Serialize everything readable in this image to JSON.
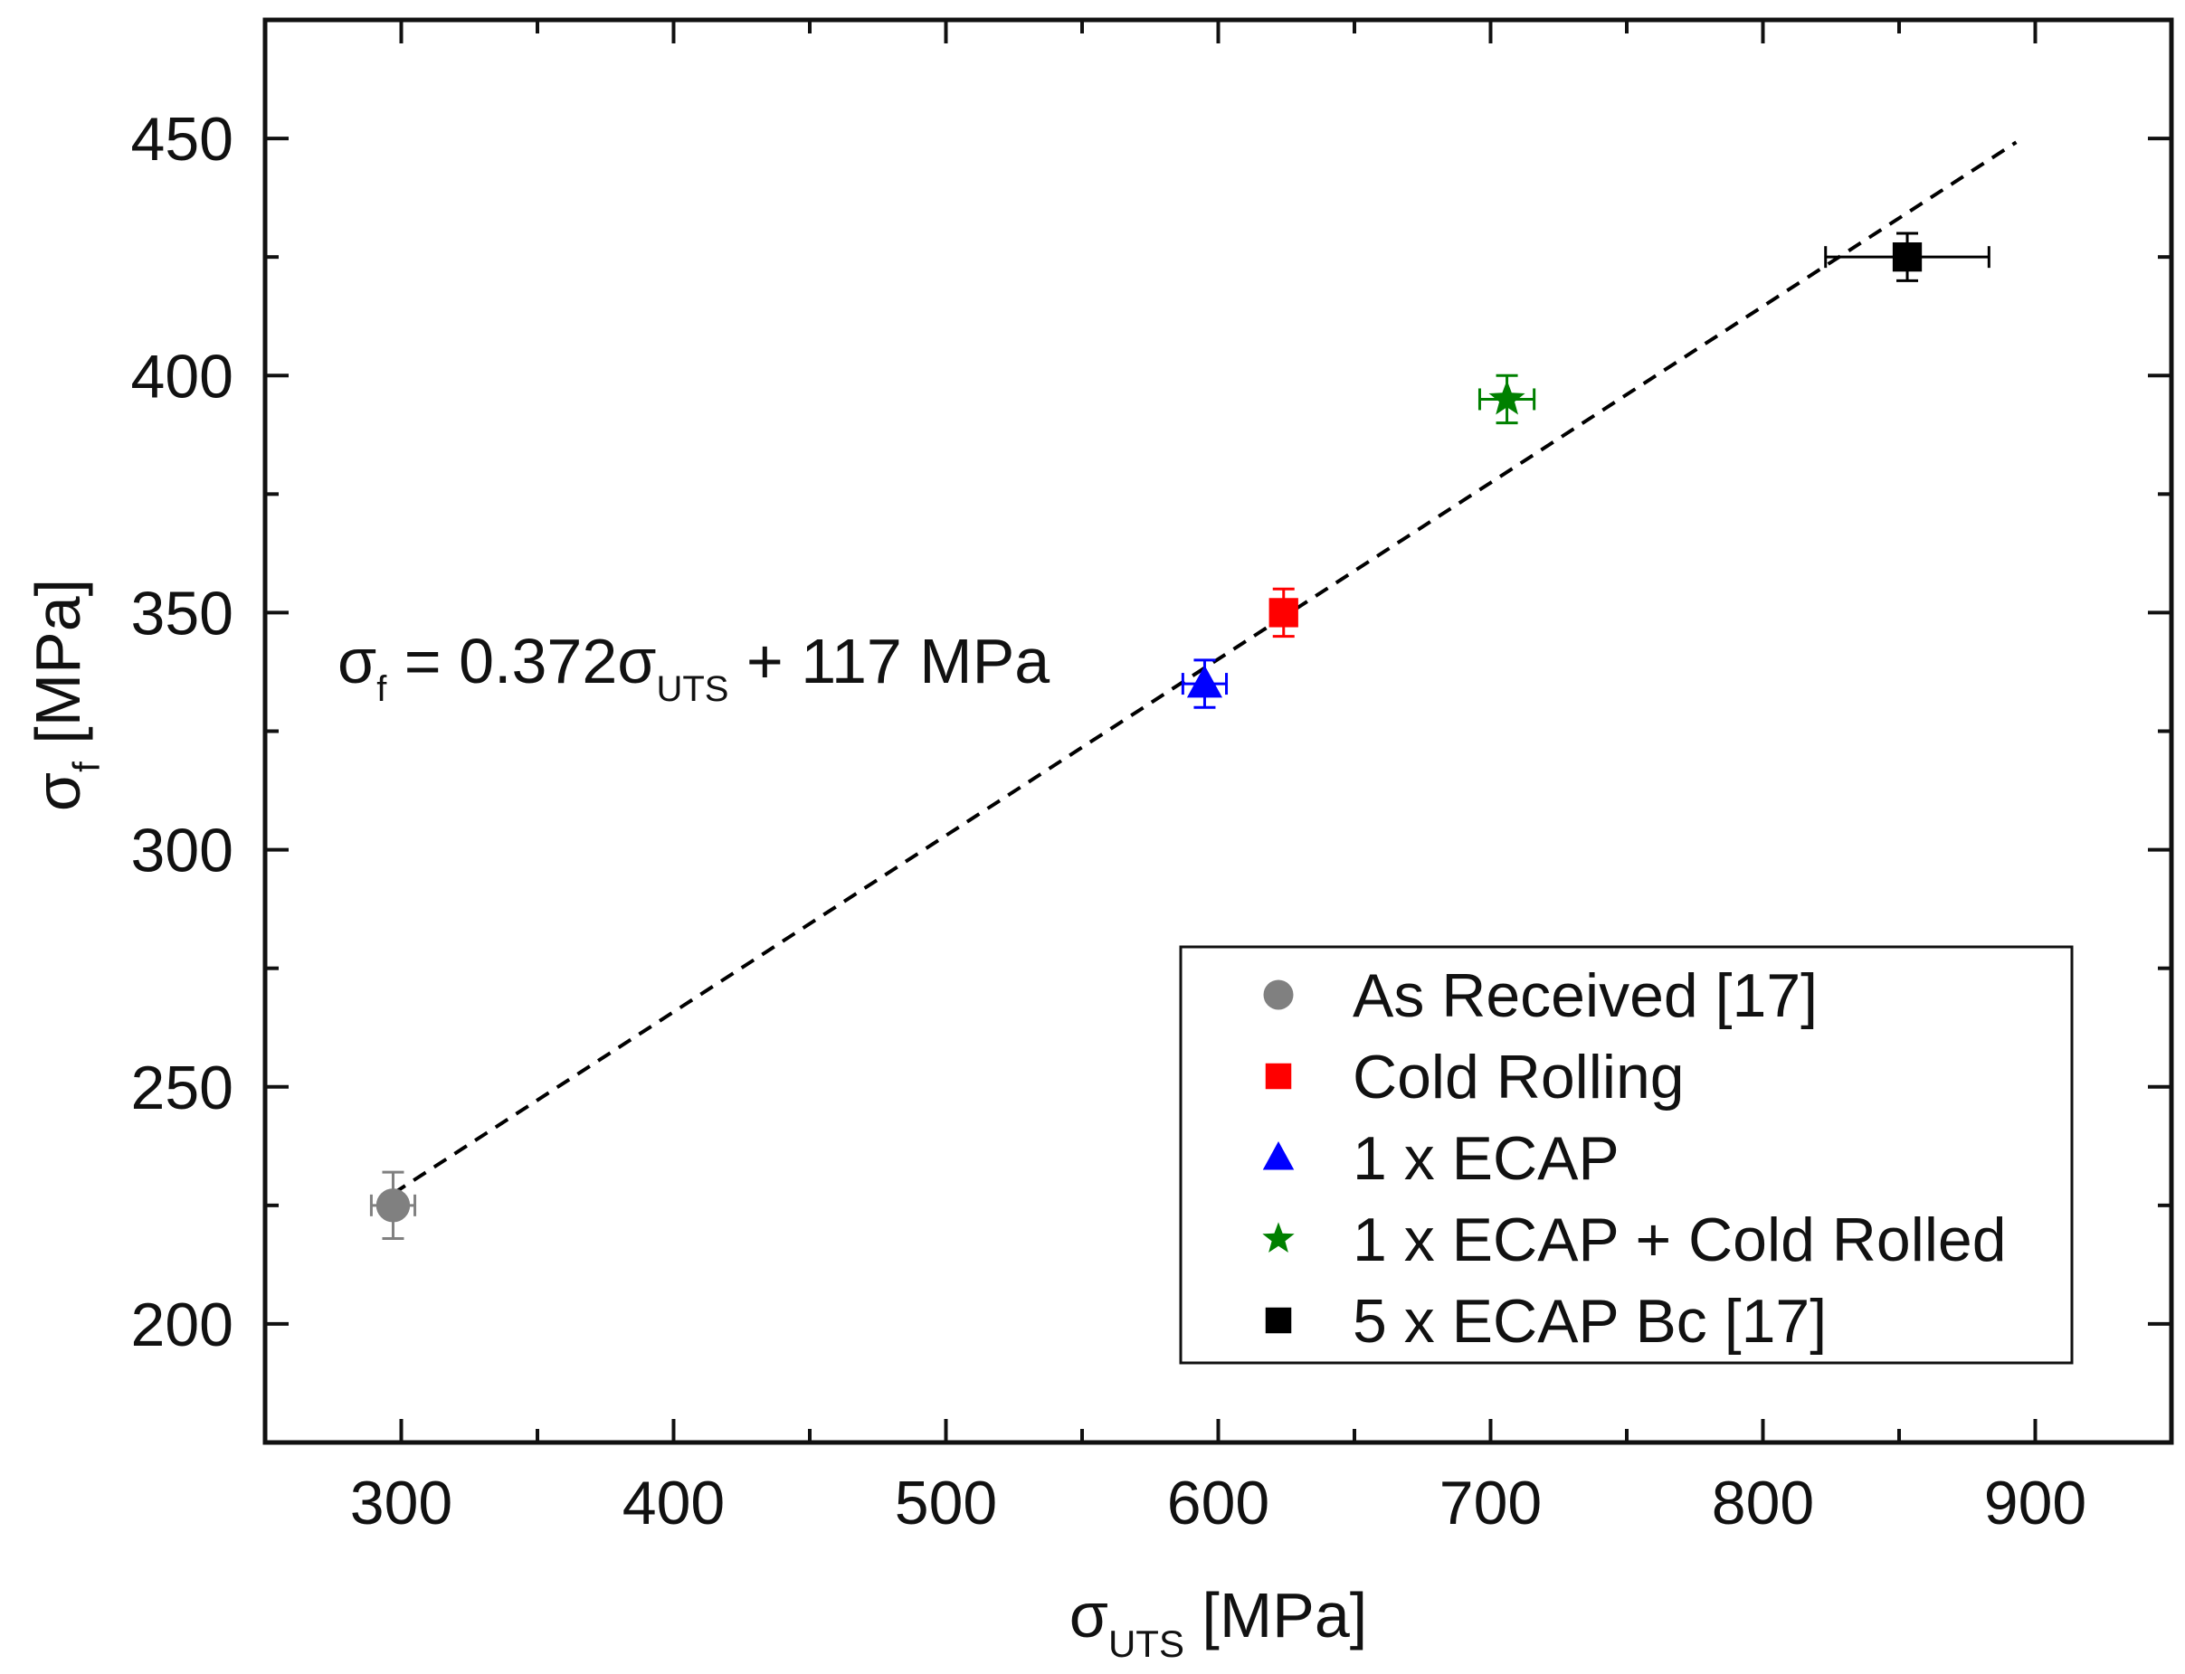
{
  "chart_data": {
    "type": "scatter",
    "title": "",
    "xlabel": {
      "symbol": "σ",
      "subscript": "UTS",
      "unit": " [MPa]"
    },
    "ylabel": {
      "symbol": "σ",
      "subscript": "f",
      "unit": " [MPa]"
    },
    "xlim": [
      250,
      950
    ],
    "ylim": [
      175,
      475
    ],
    "xticks": [
      300,
      400,
      500,
      600,
      700,
      800,
      900
    ],
    "yticks": [
      200,
      250,
      300,
      350,
      400,
      450
    ],
    "x_minor_ticks": [
      350,
      450,
      550,
      650,
      750,
      850
    ],
    "y_minor_ticks": [
      225,
      275,
      325,
      375,
      425
    ],
    "grid": false,
    "legend_position": "bottom-right",
    "series": [
      {
        "name": "As Received [17]",
        "marker": "circle",
        "color": "#808080",
        "x": 297,
        "y": 225,
        "xerr": 8,
        "yerr": 7
      },
      {
        "name": "Cold Rolling",
        "marker": "square",
        "color": "#ff0000",
        "x": 624,
        "y": 350,
        "xerr": 3,
        "yerr": 5
      },
      {
        "name": "1 x ECAP",
        "marker": "triangle",
        "color": "#0000ff",
        "x": 595,
        "y": 335,
        "xerr": 8,
        "yerr": 5
      },
      {
        "name": "1 x ECAP + Cold Rolled",
        "marker": "star",
        "color": "#008000",
        "x": 706,
        "y": 395,
        "xerr": 10,
        "yerr": 5
      },
      {
        "name": "5 x ECAP Bc [17]",
        "marker": "square",
        "color": "#000000",
        "x": 853,
        "y": 425,
        "xerr": 30,
        "yerr": 5
      }
    ],
    "fit_line": {
      "style": "dashed",
      "color": "#000000",
      "x_start": 297,
      "x_end": 893,
      "slope": 0.372,
      "intercept": 117
    },
    "annotation": {
      "parts": [
        {
          "text": "σ",
          "sub": false
        },
        {
          "text": "f",
          "sub": true
        },
        {
          "text": " = 0.372σ",
          "sub": false
        },
        {
          "text": "UTS",
          "sub": true
        },
        {
          "text": " + 117 MPa",
          "sub": false
        }
      ]
    }
  }
}
